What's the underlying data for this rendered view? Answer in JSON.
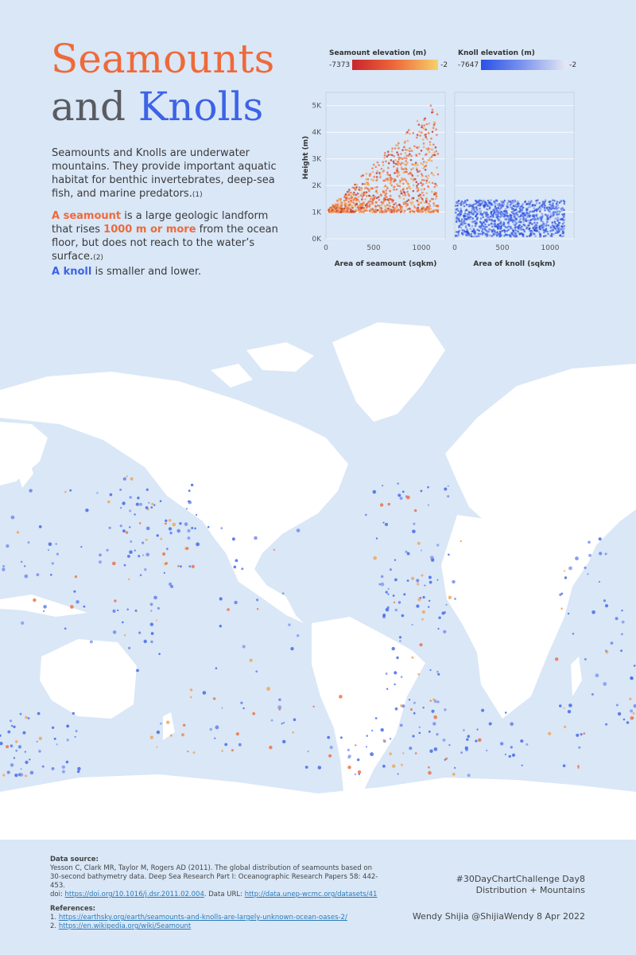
{
  "title": {
    "line1": "Seamounts",
    "and": "and ",
    "knolls": "Knolls"
  },
  "intro": {
    "p1": "Seamounts and Knolls are underwater mountains. They provide important aquatic habitat for benthic invertebrates, deep-sea fish, and marine predators.",
    "p1_ref": "(1)",
    "p2_a": "A seamount",
    "p2_b": " is a large geologic landform that rises ",
    "p2_c": "1000 m or more",
    "p2_d": " from the ocean floor, but does not reach to the water’s surface.",
    "p2_ref": "(2)",
    "p3_a": "A knoll",
    "p3_b": " is smaller and lower."
  },
  "legend": {
    "seamount": {
      "label": "Seamount elevation (m)",
      "min": "-7373",
      "max": "-2",
      "colors": [
        "#c8252c",
        "#ee6a3a",
        "#f7d06a"
      ]
    },
    "knoll": {
      "label": "Knoll elevation (m)",
      "min": "-7647",
      "max": "-2",
      "colors": [
        "#2950e8",
        "#7f96ee",
        "#e6e9f3"
      ]
    }
  },
  "chart_data": [
    {
      "type": "scatter",
      "title": "",
      "xlabel": "Area of seamount (sqkm)",
      "ylabel": "Height (m)",
      "xlim": [
        0,
        1250
      ],
      "ylim": [
        0,
        5500
      ],
      "xticks": [
        "0",
        "500",
        "1000"
      ],
      "yticks": [
        "0K",
        "1K",
        "2K",
        "3K",
        "4K",
        "5K"
      ],
      "series": [
        {
          "name": "Seamount",
          "color": "#ee6a3a",
          "x_range": [
            30,
            1180
          ],
          "y_range": [
            1000,
            5300
          ]
        }
      ]
    },
    {
      "type": "scatter",
      "title": "",
      "xlabel": "Area of knoll (sqkm)",
      "ylabel": "",
      "xlim": [
        0,
        1250
      ],
      "ylim": [
        0,
        5500
      ],
      "xticks": [
        "0",
        "500",
        "1000"
      ],
      "series": [
        {
          "name": "Knoll",
          "color": "#3d63e6",
          "x_range": [
            10,
            1150
          ],
          "y_range": [
            80,
            1450
          ]
        }
      ]
    }
  ],
  "footer": {
    "source_head": "Data source:",
    "source_text": "Yesson C, Clark MR, Taylor M, Rogers AD (2011). The global distribution of seamounts based on 30-second bathymetry data. Deep Sea Research Part I: Oceanographic Research Papers 58: 442-453.",
    "doi_label": "doi: ",
    "doi_link": "https://doi.org/10.1016/j.dsr.2011.02.004",
    "data_url_label": ". Data URL: ",
    "data_url": "http://data.unep-wcmc.org/datasets/41",
    "refs_head": "References:",
    "ref1_num": "1. ",
    "ref1": "https://earthsky.org/earth/seamounts-and-knolls-are-largely-unknown-ocean-oases-2/",
    "ref2_num": "2. ",
    "ref2": "https://en.wikipedia.org/wiki/Seamount"
  },
  "credit": {
    "challenge": "#30DayChartChallenge Day8",
    "topic": "Distribution + Mountains",
    "author": "Wendy Shijia   @ShijiaWendy  8 Apr 2022"
  }
}
